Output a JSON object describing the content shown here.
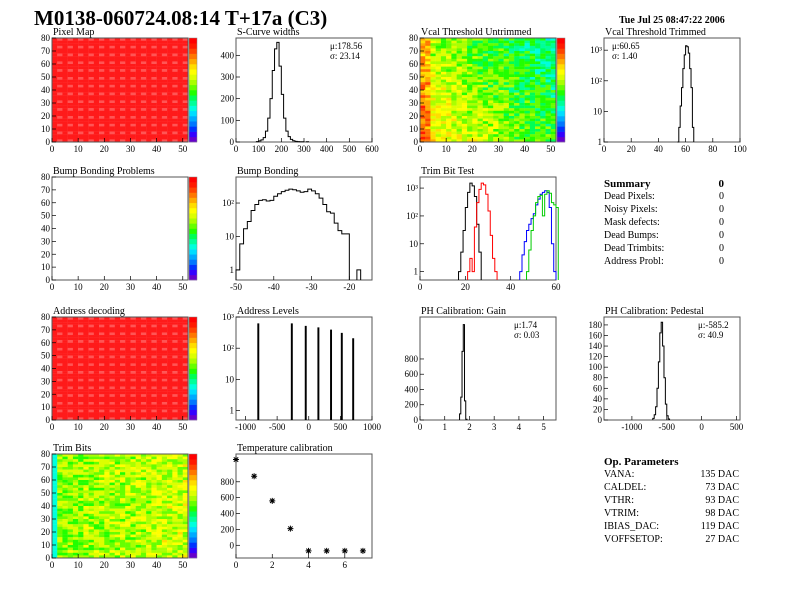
{
  "header": {
    "title": "M0138-060724.08:14 T+17a (C3)",
    "date": "Tue Jul 25 08:47:22 2006"
  },
  "summary": {
    "title": "Summary",
    "total": "0",
    "rows": [
      {
        "label": "Dead Pixels:",
        "value": "0"
      },
      {
        "label": "Noisy Pixels:",
        "value": "0"
      },
      {
        "label": "Mask defects:",
        "value": "0"
      },
      {
        "label": "Dead Bumps:",
        "value": "0"
      },
      {
        "label": "Dead Trimbits:",
        "value": "0"
      },
      {
        "label": "Address Probl:",
        "value": "0"
      }
    ]
  },
  "parameters": {
    "title": "Op. Parameters",
    "rows": [
      {
        "label": "VANA:",
        "value": "135 DAC"
      },
      {
        "label": "CALDEL:",
        "value": "73 DAC"
      },
      {
        "label": "VTHR:",
        "value": "93 DAC"
      },
      {
        "label": "VTRIM:",
        "value": "98 DAC"
      },
      {
        "label": "IBIAS_DAC:",
        "value": "119 DAC"
      },
      {
        "label": "VOFFSETOP:",
        "value": "27 DAC"
      }
    ]
  },
  "colors": {
    "hist_line": "#000000",
    "trim_series": [
      "#000000",
      "#ff0000",
      "#0000ff",
      "#00cc00"
    ],
    "map_red": "#ff1a1a"
  },
  "chart_data": [
    {
      "type": "heatmap",
      "title": "Pixel Map",
      "xlim": [
        0,
        52
      ],
      "ylim": [
        0,
        80
      ],
      "xticks": [
        "0",
        "10",
        "20",
        "30",
        "40",
        "50"
      ],
      "yticks": [
        "0",
        "10",
        "20",
        "30",
        "40",
        "50",
        "60",
        "70",
        "80"
      ],
      "fill": "uniform-max",
      "colormap": "rainbow"
    },
    {
      "type": "bar",
      "title": "S-Curve widths",
      "xlim": [
        0,
        600
      ],
      "ylim": [
        0,
        480
      ],
      "xticks": [
        "0",
        "100",
        "200",
        "300",
        "400",
        "500",
        "600"
      ],
      "yticks": [
        "0",
        "100",
        "200",
        "300",
        "400"
      ],
      "stats": [
        "μ:178.56",
        "σ: 23.14"
      ],
      "series": [
        {
          "width": 10,
          "bins": [
            [
              90,
              2
            ],
            [
              100,
              5
            ],
            [
              110,
              10
            ],
            [
              120,
              20
            ],
            [
              130,
              50
            ],
            [
              140,
              110
            ],
            [
              150,
              200
            ],
            [
              160,
              330
            ],
            [
              170,
              430
            ],
            [
              180,
              460
            ],
            [
              190,
              350
            ],
            [
              200,
              220
            ],
            [
              210,
              110
            ],
            [
              220,
              50
            ],
            [
              230,
              25
            ],
            [
              240,
              12
            ],
            [
              250,
              6
            ],
            [
              260,
              3
            ],
            [
              270,
              2
            ],
            [
              280,
              1
            ],
            [
              290,
              1
            ],
            [
              310,
              1
            ]
          ]
        }
      ]
    },
    {
      "type": "heatmap",
      "title": "Vcal Threshold Untrimmed",
      "xlim": [
        0,
        52
      ],
      "ylim": [
        0,
        80
      ],
      "xticks": [
        "0",
        "10",
        "20",
        "30",
        "40",
        "50"
      ],
      "yticks": [
        "0",
        "10",
        "20",
        "30",
        "40",
        "50",
        "60",
        "70",
        "80"
      ],
      "fill": "threshold",
      "colormap": "rainbow"
    },
    {
      "type": "bar",
      "log": true,
      "title": "Vcal Threshold Trimmed",
      "xlim": [
        0,
        100
      ],
      "ylim": [
        1,
        2500
      ],
      "xticks": [
        "0",
        "20",
        "40",
        "60",
        "80",
        "100"
      ],
      "yticks": [
        "1",
        "10",
        "10²",
        "10³"
      ],
      "stats": [
        "μ:60.65",
        "σ: 1.40"
      ],
      "series": [
        {
          "width": 1,
          "bins": [
            [
              54,
              1
            ],
            [
              55,
              3
            ],
            [
              56,
              15
            ],
            [
              57,
              60
            ],
            [
              58,
              250
            ],
            [
              59,
              700
            ],
            [
              60,
              1400
            ],
            [
              61,
              1300
            ],
            [
              62,
              800
            ],
            [
              63,
              250
            ],
            [
              64,
              60
            ],
            [
              65,
              3
            ]
          ]
        }
      ]
    },
    {
      "type": "heatmap",
      "title": "Bump Bonding Problems",
      "xlim": [
        0,
        52
      ],
      "ylim": [
        0,
        80
      ],
      "xticks": [
        "0",
        "10",
        "20",
        "30",
        "40",
        "50"
      ],
      "yticks": [
        "0",
        "10",
        "20",
        "30",
        "40",
        "50",
        "60",
        "70",
        "80"
      ],
      "fill": "empty",
      "colormap": "rainbow"
    },
    {
      "type": "bar",
      "log": true,
      "title": "Bump Bonding",
      "xlim": [
        -50,
        -14
      ],
      "ylim": [
        0.5,
        600
      ],
      "xticks": [
        "-50",
        "-40",
        "-30",
        "-20"
      ],
      "yticks": [
        "1",
        "10",
        "10²"
      ],
      "series": [
        {
          "width": 1,
          "bins": [
            [
              -50,
              1
            ],
            [
              -49,
              6
            ],
            [
              -48,
              17
            ],
            [
              -47,
              28
            ],
            [
              -46,
              60
            ],
            [
              -45,
              90
            ],
            [
              -44,
              120
            ],
            [
              -43,
              125
            ],
            [
              -42,
              115
            ],
            [
              -41,
              120
            ],
            [
              -40,
              160
            ],
            [
              -39,
              190
            ],
            [
              -38,
              220
            ],
            [
              -37,
              240
            ],
            [
              -36,
              260
            ],
            [
              -35,
              250
            ],
            [
              -34,
              230
            ],
            [
              -33,
              210
            ],
            [
              -32,
              220
            ],
            [
              -31,
              260
            ],
            [
              -30,
              230
            ],
            [
              -29,
              190
            ],
            [
              -28,
              140
            ],
            [
              -27,
              90
            ],
            [
              -26,
              55
            ],
            [
              -25,
              50
            ],
            [
              -24,
              25
            ],
            [
              -23,
              15
            ],
            [
              -22,
              12
            ],
            [
              -21,
              12
            ],
            [
              -18,
              1
            ]
          ]
        }
      ]
    },
    {
      "type": "bar",
      "log": true,
      "title": "Trim Bit Test",
      "xlim": [
        0,
        60
      ],
      "ylim": [
        0.5,
        2500
      ],
      "xticks": [
        "0",
        "20",
        "40",
        "60"
      ],
      "yticks": [
        "1",
        "10",
        "10²",
        "10³"
      ],
      "series": [
        {
          "width": 1,
          "bins": [
            [
              17,
              1
            ],
            [
              18,
              5
            ],
            [
              19,
              30
            ],
            [
              20,
              200
            ],
            [
              21,
              700
            ],
            [
              22,
              1500
            ],
            [
              23,
              1200
            ],
            [
              24,
              500
            ],
            [
              25,
              50
            ],
            [
              26,
              5
            ]
          ]
        },
        {
          "width": 1,
          "bins": [
            [
              21,
              1
            ],
            [
              22,
              3
            ],
            [
              23,
              1
            ],
            [
              24,
              40
            ],
            [
              25,
              300
            ],
            [
              26,
              900
            ],
            [
              27,
              1500
            ],
            [
              28,
              1300
            ],
            [
              29,
              600
            ],
            [
              30,
              150
            ],
            [
              31,
              20
            ],
            [
              32,
              3
            ],
            [
              33,
              1
            ]
          ]
        },
        {
          "width": 1,
          "bins": [
            [
              44,
              1
            ],
            [
              45,
              4
            ],
            [
              46,
              12
            ],
            [
              47,
              30
            ],
            [
              48,
              50
            ],
            [
              49,
              80
            ],
            [
              50,
              120
            ],
            [
              51,
              250
            ],
            [
              52,
              400
            ],
            [
              53,
              600
            ],
            [
              54,
              700
            ],
            [
              55,
              800
            ],
            [
              56,
              700
            ],
            [
              57,
              200
            ],
            [
              58,
              10
            ],
            [
              59,
              1
            ]
          ]
        },
        {
          "width": 1,
          "bins": [
            [
              47,
              1
            ],
            [
              48,
              6
            ],
            [
              49,
              30
            ],
            [
              50,
              100
            ],
            [
              51,
              300
            ],
            [
              52,
              500
            ],
            [
              53,
              550
            ],
            [
              54,
              100
            ],
            [
              55,
              600
            ],
            [
              56,
              800
            ],
            [
              57,
              650
            ],
            [
              58,
              300
            ],
            [
              59,
              250
            ],
            [
              60,
              200
            ]
          ]
        }
      ]
    },
    {
      "type": "heatmap",
      "title": "Address decoding",
      "xlim": [
        0,
        52
      ],
      "ylim": [
        0,
        80
      ],
      "xticks": [
        "0",
        "10",
        "20",
        "30",
        "40",
        "50"
      ],
      "yticks": [
        "0",
        "10",
        "20",
        "30",
        "40",
        "50",
        "60",
        "70",
        "80"
      ],
      "fill": "uniform-max",
      "colormap": "rainbow"
    },
    {
      "type": "bar",
      "log": true,
      "title": "Address Levels",
      "xlim": [
        -1150,
        1000
      ],
      "ylim": [
        0.5,
        1000
      ],
      "xticks": [
        "-1000",
        "-500",
        "0",
        "500",
        "1000"
      ],
      "yticks": [
        "1",
        "10",
        "10²",
        "10³"
      ],
      "series": [
        {
          "width": 15,
          "bins": [
            [
              -805,
              600
            ],
            [
              -275,
              600
            ],
            [
              -55,
              500
            ],
            [
              145,
              450
            ],
            [
              345,
              380
            ],
            [
              515,
              300
            ],
            [
              695,
              200
            ]
          ]
        }
      ]
    },
    {
      "type": "bar",
      "title": "PH Calibration: Gain",
      "xlim": [
        0,
        5.5
      ],
      "ylim": [
        0,
        1350
      ],
      "xticks": [
        "0",
        "1",
        "2",
        "3",
        "4",
        "5"
      ],
      "yticks": [
        "0",
        "200",
        "400",
        "600",
        "800"
      ],
      "stats": [
        "μ:1.74",
        "σ: 0.03"
      ],
      "series": [
        {
          "width": 0.05,
          "bins": [
            [
              1.6,
              80
            ],
            [
              1.65,
              300
            ],
            [
              1.7,
              900
            ],
            [
              1.75,
              1250
            ],
            [
              1.8,
              250
            ],
            [
              1.85,
              10
            ]
          ]
        }
      ]
    },
    {
      "type": "bar",
      "title": "PH Calibration: Pedestal",
      "xlim": [
        -1400,
        550
      ],
      "ylim": [
        0,
        195
      ],
      "xticks": [
        "-1000",
        "-500",
        "0",
        "500"
      ],
      "yticks": [
        "0",
        "20",
        "40",
        "60",
        "80",
        "100",
        "120",
        "140",
        "160",
        "180"
      ],
      "stats": [
        "μ:-585.2",
        "σ: 40.9"
      ],
      "series": [
        {
          "width": 20,
          "bins": [
            [
              -700,
              3
            ],
            [
              -680,
              10
            ],
            [
              -660,
              25
            ],
            [
              -640,
              60
            ],
            [
              -620,
              110
            ],
            [
              -600,
              165
            ],
            [
              -580,
              185
            ],
            [
              -560,
              140
            ],
            [
              -540,
              80
            ],
            [
              -520,
              30
            ],
            [
              -500,
              8
            ],
            [
              -480,
              2
            ]
          ]
        }
      ]
    },
    {
      "type": "heatmap",
      "title": "Trim Bits",
      "xlim": [
        0,
        52
      ],
      "ylim": [
        0,
        80
      ],
      "xticks": [
        "0",
        "10",
        "20",
        "30",
        "40",
        "50"
      ],
      "yticks": [
        "0",
        "10",
        "20",
        "30",
        "40",
        "50",
        "60",
        "70",
        "80"
      ],
      "fill": "trimbits",
      "colormap": "rainbow"
    },
    {
      "type": "scatter",
      "title": "Temperature calibration",
      "xlim": [
        0,
        7.5
      ],
      "ylim": [
        -160,
        1150
      ],
      "xticks": [
        "0",
        "2",
        "4",
        "6"
      ],
      "yticks": [
        "0",
        "200",
        "400",
        "600",
        "800"
      ],
      "x": [
        0,
        1,
        2,
        3,
        4,
        5,
        6,
        7
      ],
      "y": [
        1080,
        870,
        560,
        210,
        -70,
        -70,
        -70,
        -70
      ]
    }
  ]
}
